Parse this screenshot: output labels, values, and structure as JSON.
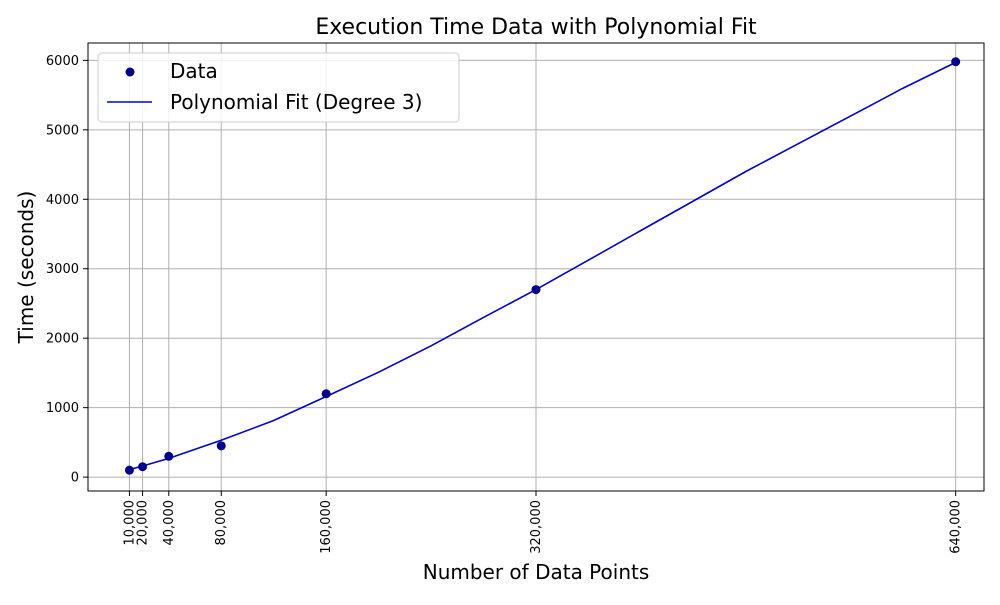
{
  "chart_data": {
    "type": "scatter",
    "title": "Execution Time Data with Polynomial Fit",
    "xlabel": "Number of Data Points",
    "ylabel": "Time (seconds)",
    "xlim": [
      -21600,
      661600
    ],
    "ylim": [
      -200,
      6250
    ],
    "grid": true,
    "legend_position": "upper left",
    "x_ticks": [
      {
        "value": 10000,
        "label": "10,000"
      },
      {
        "value": 20000,
        "label": "20,000"
      },
      {
        "value": 40000,
        "label": "40,000"
      },
      {
        "value": 80000,
        "label": "80,000"
      },
      {
        "value": 160000,
        "label": "160,000"
      },
      {
        "value": 320000,
        "label": "320,000"
      },
      {
        "value": 640000,
        "label": "640,000"
      }
    ],
    "y_ticks": [
      {
        "value": 0,
        "label": "0"
      },
      {
        "value": 1000,
        "label": "1000"
      },
      {
        "value": 2000,
        "label": "2000"
      },
      {
        "value": 3000,
        "label": "3000"
      },
      {
        "value": 4000,
        "label": "4000"
      },
      {
        "value": 5000,
        "label": "5000"
      },
      {
        "value": 6000,
        "label": "6000"
      }
    ],
    "series": [
      {
        "name": "Data",
        "kind": "scatter",
        "color": "#00008b",
        "points": [
          {
            "x": 10000,
            "y": 100
          },
          {
            "x": 20000,
            "y": 150
          },
          {
            "x": 40000,
            "y": 300
          },
          {
            "x": 80000,
            "y": 450
          },
          {
            "x": 160000,
            "y": 1200
          },
          {
            "x": 320000,
            "y": 2700
          },
          {
            "x": 640000,
            "y": 5980
          }
        ]
      },
      {
        "name": "Polynomial Fit (Degree 3)",
        "kind": "line",
        "color": "#0000cd",
        "points": [
          {
            "x": 10000,
            "y": 108
          },
          {
            "x": 20000,
            "y": 160
          },
          {
            "x": 40000,
            "y": 270
          },
          {
            "x": 80000,
            "y": 530
          },
          {
            "x": 120000,
            "y": 815
          },
          {
            "x": 160000,
            "y": 1160
          },
          {
            "x": 200000,
            "y": 1510
          },
          {
            "x": 240000,
            "y": 1890
          },
          {
            "x": 280000,
            "y": 2300
          },
          {
            "x": 320000,
            "y": 2700
          },
          {
            "x": 360000,
            "y": 3125
          },
          {
            "x": 400000,
            "y": 3550
          },
          {
            "x": 440000,
            "y": 3975
          },
          {
            "x": 480000,
            "y": 4400
          },
          {
            "x": 520000,
            "y": 4800
          },
          {
            "x": 560000,
            "y": 5200
          },
          {
            "x": 600000,
            "y": 5600
          },
          {
            "x": 640000,
            "y": 5970
          }
        ]
      }
    ]
  }
}
